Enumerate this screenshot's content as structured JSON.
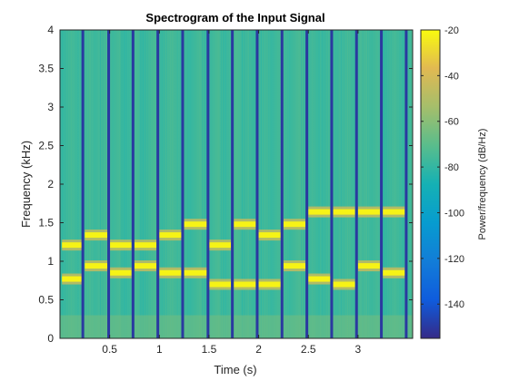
{
  "chart_data": {
    "type": "heatmap",
    "title": "Spectrogram of the Input Signal",
    "xlabel": "Time (s)",
    "ylabel": "Frequency (kHz)",
    "xlim": [
      0,
      3.55
    ],
    "ylim": [
      0,
      4
    ],
    "x_ticks": [
      0.5,
      1,
      1.5,
      2,
      2.5,
      3
    ],
    "x_tick_labels": [
      "0.5",
      "1",
      "1.5",
      "2",
      "2.5",
      "3"
    ],
    "y_ticks": [
      0,
      0.5,
      1,
      1.5,
      2,
      2.5,
      3,
      3.5,
      4
    ],
    "y_tick_labels": [
      "0",
      "0.5",
      "1",
      "1.5",
      "2",
      "2.5",
      "3",
      "3.5",
      "4"
    ],
    "colorbar": {
      "label": "Power/frequency (dB/Hz)",
      "range": [
        -155,
        -20
      ],
      "ticks": [
        -140,
        -120,
        -100,
        -80,
        -60,
        -40,
        -20
      ],
      "tick_labels": [
        "-140",
        "-120",
        "-100",
        "-80",
        "-60",
        "-40",
        "-20"
      ],
      "colormap": "parula"
    },
    "background_power_db": -75,
    "tone_power_db": -22,
    "tone_segments": [
      {
        "t_start": 0.02,
        "t_end": 0.22,
        "low_khz": 0.77,
        "high_khz": 1.21
      },
      {
        "t_start": 0.25,
        "t_end": 0.48,
        "low_khz": 0.94,
        "high_khz": 1.34
      },
      {
        "t_start": 0.5,
        "t_end": 0.72,
        "low_khz": 0.85,
        "high_khz": 1.21
      },
      {
        "t_start": 0.75,
        "t_end": 0.97,
        "low_khz": 0.94,
        "high_khz": 1.21
      },
      {
        "t_start": 1.0,
        "t_end": 1.22,
        "low_khz": 0.85,
        "high_khz": 1.34
      },
      {
        "t_start": 1.25,
        "t_end": 1.48,
        "low_khz": 0.85,
        "high_khz": 1.48
      },
      {
        "t_start": 1.5,
        "t_end": 1.72,
        "low_khz": 0.7,
        "high_khz": 1.21
      },
      {
        "t_start": 1.75,
        "t_end": 1.97,
        "low_khz": 0.7,
        "high_khz": 1.48
      },
      {
        "t_start": 2.0,
        "t_end": 2.22,
        "low_khz": 0.7,
        "high_khz": 1.34
      },
      {
        "t_start": 2.25,
        "t_end": 2.47,
        "low_khz": 0.94,
        "high_khz": 1.48
      },
      {
        "t_start": 2.5,
        "t_end": 2.72,
        "low_khz": 0.77,
        "high_khz": 1.64
      },
      {
        "t_start": 2.75,
        "t_end": 2.97,
        "low_khz": 0.7,
        "high_khz": 1.64
      },
      {
        "t_start": 3.0,
        "t_end": 3.22,
        "low_khz": 0.94,
        "high_khz": 1.64
      },
      {
        "t_start": 3.25,
        "t_end": 3.47,
        "low_khz": 0.85,
        "high_khz": 1.64
      }
    ],
    "gap_times": [
      0.23,
      0.49,
      0.735,
      0.985,
      1.235,
      1.49,
      1.735,
      1.985,
      2.235,
      2.485,
      2.735,
      2.985,
      3.235,
      3.485
    ]
  }
}
